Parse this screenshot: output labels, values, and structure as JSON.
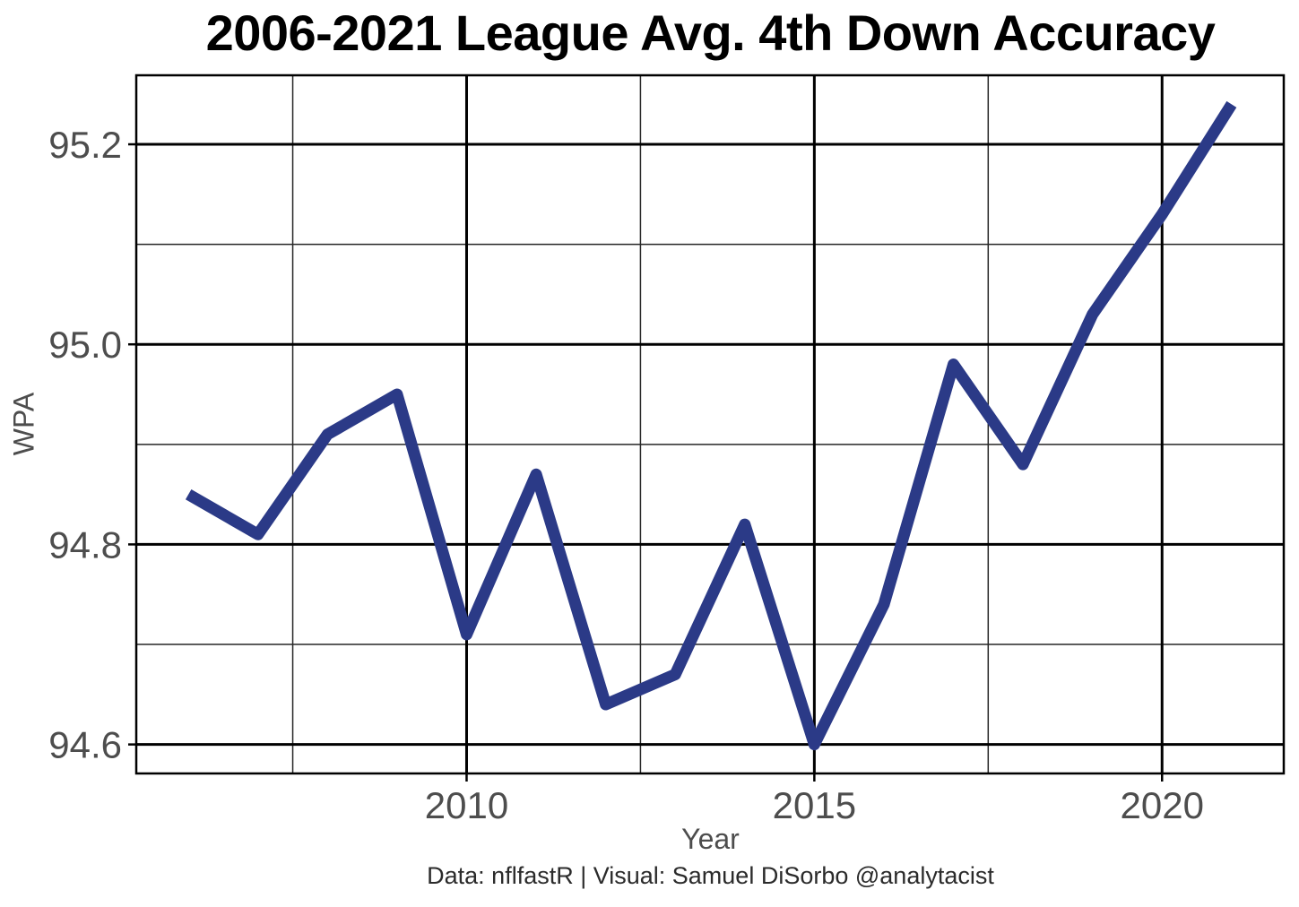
{
  "chart_data": {
    "type": "line",
    "title": "2006-2021 League Avg. 4th Down Accuracy",
    "xlabel": "Year",
    "ylabel": "WPA",
    "caption": "Data: nflfastR | Visual: Samuel DiSorbo @analytacist",
    "x": [
      2006,
      2007,
      2008,
      2009,
      2010,
      2011,
      2012,
      2013,
      2014,
      2015,
      2016,
      2017,
      2018,
      2019,
      2020,
      2021
    ],
    "values": [
      94.85,
      94.81,
      94.91,
      94.95,
      94.71,
      94.87,
      94.64,
      94.67,
      94.82,
      94.6,
      94.74,
      94.98,
      94.88,
      95.03,
      95.13,
      95.24
    ],
    "xlim": [
      2005.25,
      2021.75
    ],
    "ylim": [
      94.571,
      95.269
    ],
    "x_major_ticks": [
      2010,
      2015,
      2020
    ],
    "x_tick_labels": [
      "2010",
      "2015",
      "2020"
    ],
    "x_minor_gridlines": [
      2007.5,
      2012.5,
      2017.5
    ],
    "y_major_ticks": [
      94.6,
      94.8,
      95.0,
      95.2
    ],
    "y_tick_labels": [
      "94.6",
      "94.8",
      "95.0",
      "95.2"
    ],
    "y_minor_gridlines": [
      94.7,
      94.9,
      95.1
    ],
    "grid": "major-and-minor",
    "legend": "none",
    "colors": {
      "line": "#2B3A87",
      "grid_major": "#000000",
      "grid_minor": "#262626",
      "border": "#000000",
      "tick_mark": "#000000",
      "tick_label": "#4d4d4d",
      "axis_label": "#4d4d4d",
      "title": "#000000",
      "caption": "#2b2b2b",
      "background": "#ffffff"
    }
  }
}
